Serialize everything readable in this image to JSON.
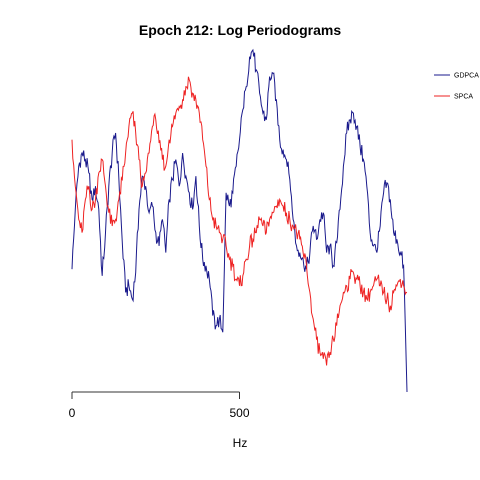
{
  "chart_data": {
    "type": "line",
    "title": "Epoch 212: Log Periodograms",
    "xlabel": "Hz",
    "ylabel": "",
    "xlim": [
      0,
      1000
    ],
    "ylim": [
      0,
      100
    ],
    "x_ticks": [
      0,
      500
    ],
    "x_tick_labels": [
      "0",
      "500"
    ],
    "grid": false,
    "legend_position": "top-right",
    "series": [
      {
        "name": "GDPCA",
        "color": "#1a1a8c",
        "x": [
          0,
          10,
          20,
          30,
          40,
          50,
          60,
          70,
          80,
          90,
          100,
          110,
          120,
          130,
          140,
          150,
          160,
          170,
          180,
          190,
          200,
          210,
          220,
          230,
          240,
          250,
          260,
          270,
          280,
          290,
          300,
          310,
          320,
          330,
          340,
          350,
          360,
          370,
          380,
          390,
          400,
          410,
          420,
          430,
          440,
          450,
          460,
          470,
          480,
          490,
          500,
          510,
          520,
          530,
          540,
          550,
          560,
          570,
          580,
          590,
          600,
          610,
          620,
          630,
          640,
          650,
          660,
          670,
          680,
          690,
          700,
          710,
          720,
          730,
          740,
          750,
          760,
          770,
          780,
          790,
          800,
          810,
          820,
          830,
          840,
          850,
          860,
          870,
          880,
          890,
          900,
          910,
          920,
          930,
          940,
          950,
          960,
          970,
          980,
          990,
          1000
        ],
        "values": [
          37,
          55,
          68,
          72,
          70,
          66,
          58,
          62,
          55,
          35,
          48,
          62,
          72,
          78,
          64,
          45,
          30,
          32,
          28,
          36,
          55,
          65,
          62,
          54,
          56,
          48,
          44,
          52,
          42,
          58,
          64,
          70,
          62,
          72,
          65,
          60,
          55,
          65,
          50,
          40,
          38,
          34,
          23,
          20,
          22,
          18,
          60,
          56,
          60,
          68,
          76,
          85,
          92,
          101,
          103,
          97,
          90,
          84,
          82,
          95,
          96,
          88,
          76,
          73,
          70,
          64,
          52,
          44,
          42,
          40,
          37,
          42,
          50,
          46,
          52,
          54,
          42,
          44,
          38,
          45,
          55,
          68,
          78,
          82,
          84,
          80,
          74,
          70,
          62,
          48,
          44,
          42,
          50,
          60,
          63,
          58,
          48,
          46,
          42,
          38,
          0
        ]
      },
      {
        "name": "SPCA",
        "color": "#ee2222",
        "x": [
          0,
          10,
          20,
          30,
          40,
          50,
          60,
          70,
          80,
          90,
          100,
          110,
          120,
          130,
          140,
          150,
          160,
          170,
          180,
          190,
          200,
          210,
          220,
          230,
          240,
          250,
          260,
          270,
          280,
          290,
          300,
          310,
          320,
          330,
          340,
          350,
          360,
          370,
          380,
          390,
          400,
          410,
          420,
          430,
          440,
          450,
          460,
          470,
          480,
          490,
          500,
          510,
          520,
          530,
          540,
          550,
          560,
          570,
          580,
          590,
          600,
          610,
          620,
          630,
          640,
          650,
          660,
          670,
          680,
          690,
          700,
          710,
          720,
          730,
          740,
          750,
          760,
          770,
          780,
          790,
          800,
          810,
          820,
          830,
          840,
          850,
          860,
          870,
          880,
          890,
          900,
          910,
          920,
          930,
          940,
          950,
          960,
          970,
          980,
          990,
          1000
        ],
        "values": [
          76,
          62,
          52,
          48,
          58,
          62,
          55,
          58,
          66,
          70,
          62,
          54,
          50,
          52,
          58,
          64,
          72,
          80,
          84,
          78,
          70,
          62,
          66,
          72,
          80,
          82,
          75,
          70,
          68,
          76,
          80,
          84,
          86,
          88,
          92,
          94,
          90,
          88,
          84,
          76,
          68,
          58,
          52,
          50,
          48,
          46,
          44,
          40,
          38,
          34,
          32,
          35,
          40,
          44,
          46,
          48,
          52,
          50,
          48,
          52,
          54,
          56,
          58,
          56,
          54,
          52,
          50,
          48,
          46,
          42,
          38,
          30,
          22,
          16,
          12,
          10,
          8,
          12,
          16,
          20,
          26,
          30,
          32,
          34,
          36,
          34,
          32,
          30,
          28,
          30,
          32,
          34,
          32,
          30,
          28,
          26,
          30,
          32,
          34,
          32,
          30
        ]
      }
    ]
  }
}
